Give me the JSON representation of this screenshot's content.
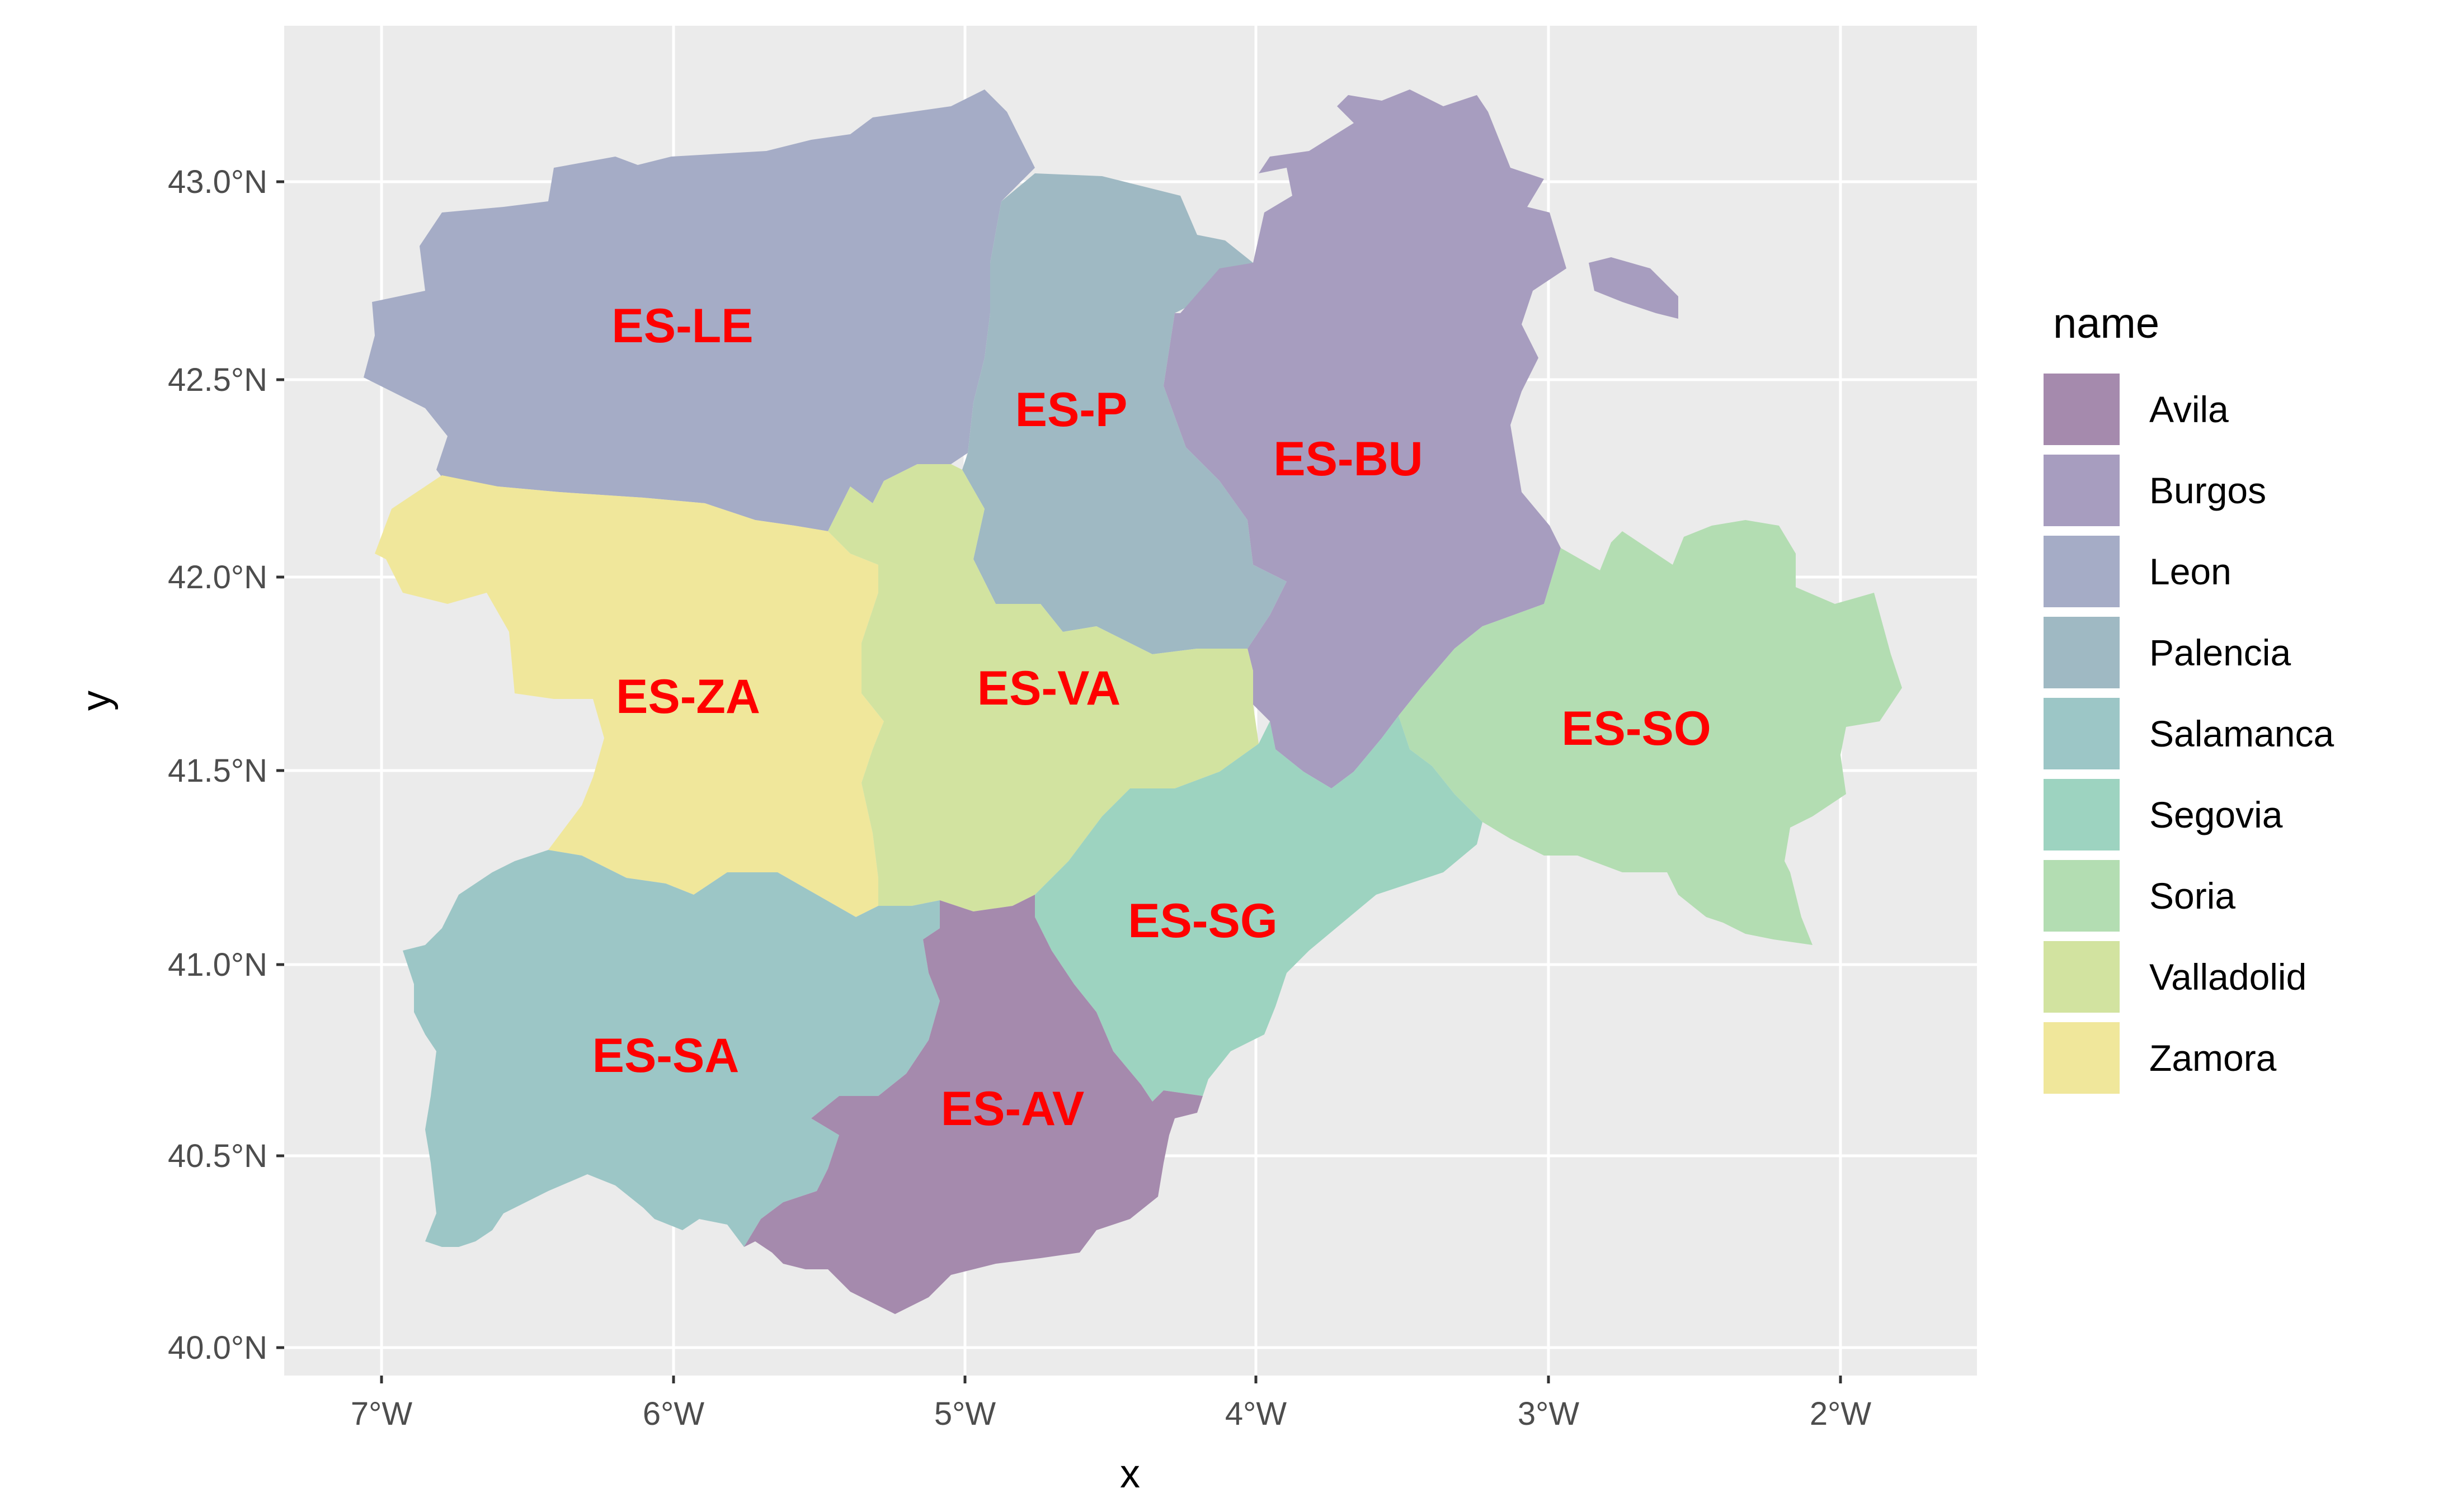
{
  "axes": {
    "x_title": "x",
    "y_title": "y",
    "x_ticks": [
      "7°W",
      "6°W",
      "5°W",
      "4°W",
      "3°W",
      "2°W"
    ],
    "y_ticks": [
      "40.0°N",
      "40.5°N",
      "41.0°N",
      "41.5°N",
      "42.0°N",
      "42.5°N",
      "43.0°N"
    ]
  },
  "legend": {
    "title": "name",
    "items": [
      {
        "label": "Avila",
        "color": "#a58aad"
      },
      {
        "label": "Burgos",
        "color": "#a79dbf"
      },
      {
        "label": "Leon",
        "color": "#a5acc6"
      },
      {
        "label": "Palencia",
        "color": "#9fb9c3"
      },
      {
        "label": "Salamanca",
        "color": "#9cc6c6"
      },
      {
        "label": "Segovia",
        "color": "#9dd3c0"
      },
      {
        "label": "Soria",
        "color": "#b3ddb2"
      },
      {
        "label": "Valladolid",
        "color": "#d2e3a0"
      },
      {
        "label": "Zamora",
        "color": "#f0e79b"
      }
    ]
  },
  "regions": [
    {
      "name": "Leon",
      "code": "ES-LE",
      "color": "#a5acc6"
    },
    {
      "name": "Palencia",
      "code": "ES-P",
      "color": "#9fb9c3"
    },
    {
      "name": "Burgos",
      "code": "ES-BU",
      "color": "#a79dbf"
    },
    {
      "name": "Zamora",
      "code": "ES-ZA",
      "color": "#f0e79b"
    },
    {
      "name": "Valladolid",
      "code": "ES-VA",
      "color": "#d2e3a0"
    },
    {
      "name": "Soria",
      "code": "ES-SO",
      "color": "#b3ddb2"
    },
    {
      "name": "Segovia",
      "code": "ES-SG",
      "color": "#9dd3c0"
    },
    {
      "name": "Salamanca",
      "code": "ES-SA",
      "color": "#9cc6c6"
    },
    {
      "name": "Avila",
      "code": "ES-AV",
      "color": "#a58aad"
    }
  ],
  "colors": {
    "panel_background": "#ebebeb",
    "grid_line": "#ffffff",
    "label_color": "#ff0000"
  }
}
